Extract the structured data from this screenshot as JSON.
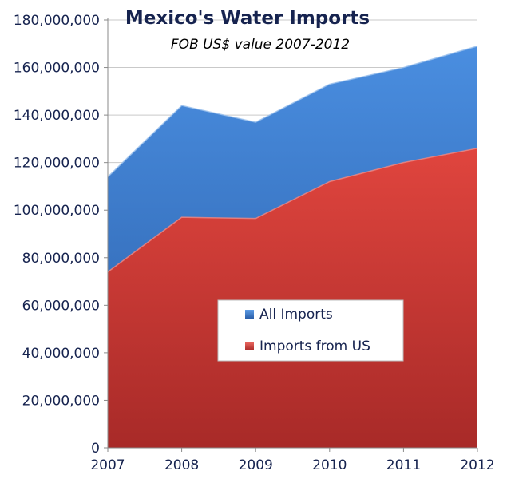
{
  "chart_data": {
    "type": "area",
    "title": "Mexico's Water Imports",
    "subtitle": "FOB US$ value 2007-2012",
    "x": [
      "2007",
      "2008",
      "2009",
      "2010",
      "2011",
      "2012"
    ],
    "series": [
      {
        "name": "All Imports",
        "values": [
          114000000,
          144000000,
          137000000,
          153000000,
          160000000,
          169000000
        ],
        "color": "#3a7bd0"
      },
      {
        "name": "Imports from US",
        "values": [
          74000000,
          97000000,
          96500000,
          112000000,
          120000000,
          126000000
        ],
        "color": "#d63c36"
      }
    ],
    "ylim": [
      0,
      180000000
    ],
    "yticks": [
      0,
      20000000,
      40000000,
      60000000,
      80000000,
      100000000,
      120000000,
      140000000,
      160000000,
      180000000
    ],
    "ytick_labels": [
      "0",
      "20,000,000",
      "40,000,000",
      "60,000,000",
      "80,000,000",
      "100,000,000",
      "120,000,000",
      "140,000,000",
      "160,000,000",
      "180,000,000"
    ],
    "grid": true,
    "legend_position": "center-right",
    "xlabel": "",
    "ylabel": ""
  }
}
